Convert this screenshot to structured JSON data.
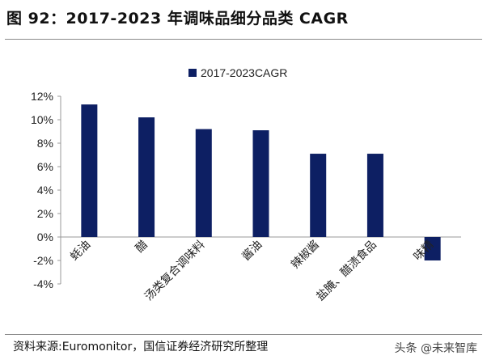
{
  "title": "图 92：2017-2023 年调味品细分品类 CAGR",
  "source": "资料来源:Euromonitor，国信证券经济研究所整理",
  "watermark": "头条 @未来智库",
  "colors": {
    "bar": "#0d1f63",
    "axis": "#999999",
    "text": "#222222"
  },
  "chart_data": {
    "type": "bar",
    "categories": [
      "蚝油",
      "醋",
      "汤类复合调味料",
      "酱油",
      "辣椒酱",
      "盐腌、醋渍食品",
      "味精"
    ],
    "series": [
      {
        "name": "2017-2023CAGR",
        "values": [
          11.3,
          10.2,
          9.2,
          9.1,
          7.1,
          7.1,
          -2.0
        ]
      }
    ],
    "yticks": [
      "-4%",
      "-2%",
      "0%",
      "2%",
      "4%",
      "6%",
      "8%",
      "10%",
      "12%"
    ],
    "ylim": [
      -4,
      12
    ],
    "xlabel": "",
    "ylabel": "",
    "legend": "top-center"
  }
}
